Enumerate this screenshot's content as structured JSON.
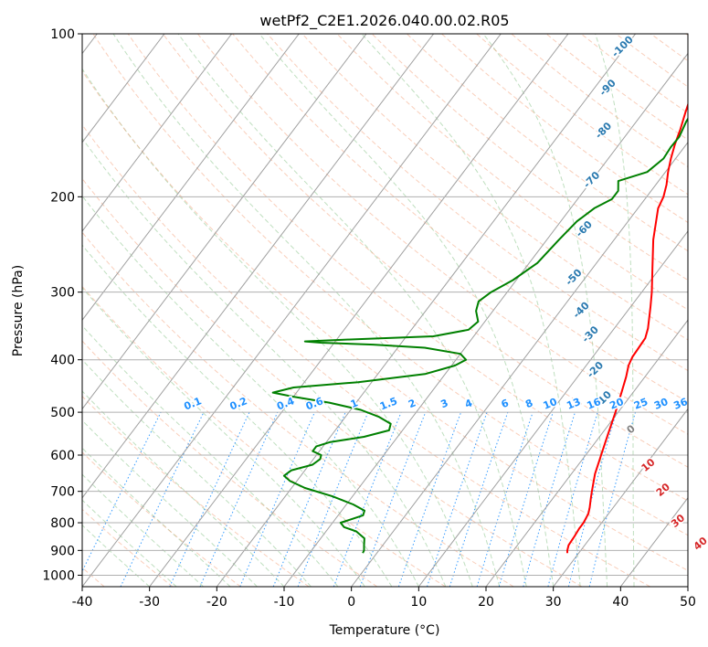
{
  "chart_data": {
    "type": "line",
    "title": "wetPf2_C2E1.2026.040.00.02.R05",
    "xlabel": "Temperature (°C)",
    "ylabel": "Pressure (hPa)",
    "xlim": [
      -40,
      50
    ],
    "ylim_hpa": [
      1050,
      100
    ],
    "y_scale": "log",
    "grid": true,
    "x_ticks": [
      "-40",
      "-30",
      "-20",
      "-10",
      "0",
      "10",
      "20",
      "30",
      "40",
      "50"
    ],
    "y_ticks": [
      "100",
      "200",
      "300",
      "400",
      "500",
      "600",
      "700",
      "800",
      "900",
      "1000"
    ],
    "series": [
      {
        "role": "temperature",
        "color": "#ff0000",
        "points_p_T": [
          [
            910,
            28.3
          ],
          [
            900,
            28.0
          ],
          [
            880,
            27.6
          ],
          [
            850,
            27.5
          ],
          [
            820,
            27.3
          ],
          [
            800,
            27.3
          ],
          [
            770,
            27.0
          ],
          [
            750,
            26.5
          ],
          [
            720,
            25.6
          ],
          [
            700,
            25.0
          ],
          [
            650,
            23.5
          ],
          [
            600,
            22.3
          ],
          [
            550,
            21.0
          ],
          [
            500,
            19.6
          ],
          [
            460,
            18.3
          ],
          [
            430,
            17.2
          ],
          [
            410,
            16.3
          ],
          [
            395,
            15.9
          ],
          [
            380,
            15.8
          ],
          [
            365,
            15.7
          ],
          [
            350,
            15.0
          ],
          [
            320,
            13.0
          ],
          [
            300,
            11.5
          ],
          [
            270,
            8.8
          ],
          [
            240,
            5.8
          ],
          [
            210,
            3.0
          ],
          [
            200,
            2.5
          ],
          [
            190,
            1.6
          ],
          [
            180,
            0.4
          ],
          [
            170,
            -0.7
          ],
          [
            160,
            -1.7
          ],
          [
            150,
            -2.6
          ],
          [
            140,
            -3.7
          ],
          [
            130,
            -4.8
          ],
          [
            122,
            -6.1
          ]
        ]
      },
      {
        "role": "dewpoint",
        "color": "#008000",
        "points_p_T": [
          [
            910,
            -2.1
          ],
          [
            900,
            -2.2
          ],
          [
            880,
            -2.8
          ],
          [
            855,
            -3.5
          ],
          [
            830,
            -5.5
          ],
          [
            815,
            -7.8
          ],
          [
            800,
            -8.8
          ],
          [
            790,
            -7.8
          ],
          [
            775,
            -6.3
          ],
          [
            760,
            -6.6
          ],
          [
            740,
            -9.0
          ],
          [
            715,
            -13.0
          ],
          [
            690,
            -18.0
          ],
          [
            670,
            -21.0
          ],
          [
            655,
            -22.5
          ],
          [
            640,
            -22.0
          ],
          [
            625,
            -19.5
          ],
          [
            610,
            -19.0
          ],
          [
            600,
            -19.3
          ],
          [
            590,
            -21.0
          ],
          [
            578,
            -21.0
          ],
          [
            568,
            -19.5
          ],
          [
            555,
            -15.0
          ],
          [
            540,
            -12.0
          ],
          [
            525,
            -12.5
          ],
          [
            510,
            -15.0
          ],
          [
            495,
            -18.5
          ],
          [
            480,
            -24.0
          ],
          [
            468,
            -30.0
          ],
          [
            460,
            -33.5
          ],
          [
            450,
            -31.0
          ],
          [
            440,
            -22.0
          ],
          [
            425,
            -13.0
          ],
          [
            410,
            -9.5
          ],
          [
            400,
            -8.5
          ],
          [
            390,
            -10.0
          ],
          [
            380,
            -16.0
          ],
          [
            375,
            -24.0
          ],
          [
            372,
            -32.0
          ],
          [
            370,
            -34.5
          ],
          [
            367,
            -28.0
          ],
          [
            362,
            -16.0
          ],
          [
            352,
            -11.5
          ],
          [
            340,
            -11.0
          ],
          [
            325,
            -12.5
          ],
          [
            312,
            -13.2
          ],
          [
            300,
            -12.4
          ],
          [
            285,
            -10.5
          ],
          [
            265,
            -8.8
          ],
          [
            240,
            -8.2
          ],
          [
            222,
            -7.6
          ],
          [
            210,
            -6.5
          ],
          [
            202,
            -4.9
          ],
          [
            195,
            -4.9
          ],
          [
            187,
            -6.0
          ],
          [
            180,
            -2.7
          ],
          [
            170,
            -1.8
          ],
          [
            162,
            -2.0
          ],
          [
            155,
            -1.9
          ],
          [
            145,
            -2.6
          ],
          [
            135,
            -2.9
          ],
          [
            125,
            -3.3
          ],
          [
            118,
            -2.4
          ],
          [
            113,
            -2.1
          ],
          [
            110,
            -2.1
          ],
          [
            105,
            -0.5
          ],
          [
            100,
            2.0
          ]
        ]
      }
    ],
    "dry_adiabat_labels": [
      {
        "text": "-100",
        "p": 105,
        "T": -20.3
      },
      {
        "text": "-90",
        "p": 125,
        "T": -17.9
      },
      {
        "text": "-80",
        "p": 150,
        "T": -13.7
      },
      {
        "text": "-70",
        "p": 185,
        "T": -9.9
      },
      {
        "text": "-60",
        "p": 228,
        "T": -5.5
      },
      {
        "text": "-50",
        "p": 280,
        "T": -1.6
      },
      {
        "text": "-40",
        "p": 322,
        "T": 3.2
      },
      {
        "text": "-30",
        "p": 357,
        "T": 7.3
      },
      {
        "text": "-20",
        "p": 415,
        "T": 12.0
      },
      {
        "text": "-10",
        "p": 470,
        "T": 16.5
      }
    ],
    "moist_adiabat_labels": [
      {
        "text": "0",
        "p": 535,
        "T": 24.0
      },
      {
        "text": "10",
        "p": 623,
        "T": 30.6
      },
      {
        "text": "20",
        "p": 692,
        "T": 35.6
      },
      {
        "text": "30",
        "p": 790,
        "T": 41.3
      },
      {
        "text": "40",
        "p": 870,
        "T": 47.2
      }
    ],
    "mixing_ratio_labels": [
      {
        "text": "0.1",
        "T": -23.4
      },
      {
        "text": "0.2",
        "T": -16.6
      },
      {
        "text": "0.4",
        "T": -9.6
      },
      {
        "text": "0.6",
        "T": -5.3
      },
      {
        "text": "1",
        "T": 0.6
      },
      {
        "text": "1.5",
        "T": 5.7
      },
      {
        "text": "2",
        "T": 9.2
      },
      {
        "text": "3",
        "T": 14.0
      },
      {
        "text": "4",
        "T": 17.6
      },
      {
        "text": "6",
        "T": 23.0
      },
      {
        "text": "8",
        "T": 26.6
      },
      {
        "text": "10",
        "T": 29.7
      },
      {
        "text": "13",
        "T": 33.2
      },
      {
        "text": "16",
        "T": 36.2
      },
      {
        "text": "20",
        "T": 39.6
      },
      {
        "text": "25",
        "T": 43.2
      },
      {
        "text": "30",
        "T": 46.2
      },
      {
        "text": "36",
        "T": 49.1
      }
    ],
    "colors": {
      "dry_adiabat": "#2a7ab0",
      "moist_adiabat": "#d62728",
      "mixing_ratio": "#1e90ff",
      "isotherm": "#a0a0a0"
    }
  }
}
